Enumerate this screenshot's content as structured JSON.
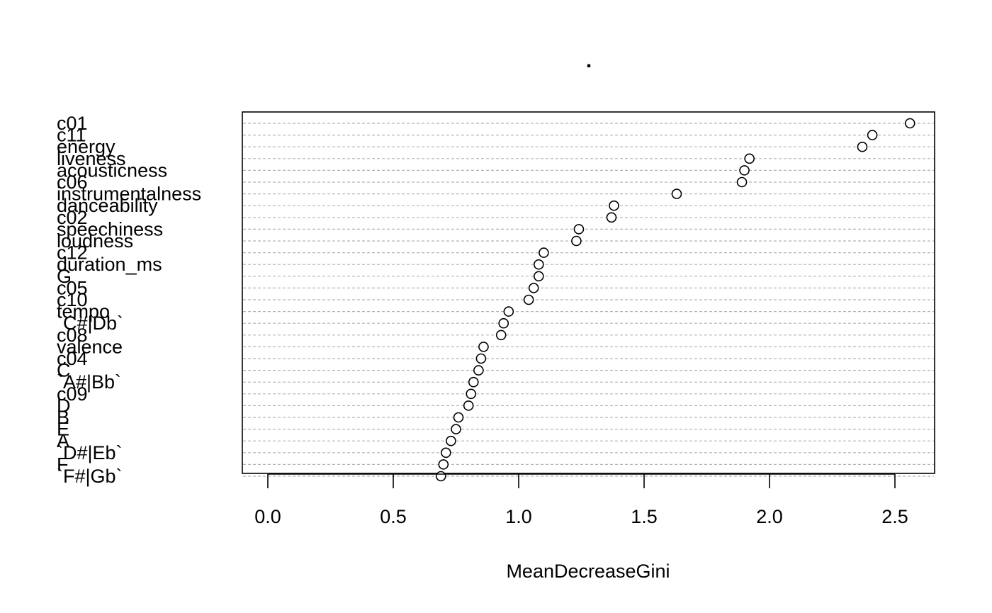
{
  "chart_data": {
    "type": "scatter",
    "variant": "dotchart",
    "title": ".",
    "xlabel": "MeanDecreaseGini",
    "ylabel": "",
    "xlim": [
      -0.1,
      2.66
    ],
    "xticks": [
      "0.0",
      "0.5",
      "1.0",
      "1.5",
      "2.0",
      "2.5"
    ],
    "grid": true,
    "categories": [
      "c01",
      "c11",
      "energy",
      "liveness",
      "acousticness",
      "c06",
      "instrumentalness",
      "danceability",
      "c02",
      "speechiness",
      "loudness",
      "c12",
      "duration_ms",
      "G",
      "c05",
      "c10",
      "tempo",
      "`C#|Db`",
      "c08",
      "valence",
      "c04",
      "C",
      "`A#|Bb`",
      "c09",
      "D",
      "B",
      "E",
      "A",
      "`D#|Eb`",
      "F",
      "`F#|Gb`"
    ],
    "values": [
      2.56,
      2.41,
      2.37,
      1.92,
      1.9,
      1.89,
      1.63,
      1.38,
      1.37,
      1.24,
      1.23,
      1.1,
      1.08,
      1.08,
      1.06,
      1.04,
      0.96,
      0.94,
      0.93,
      0.86,
      0.85,
      0.84,
      0.82,
      0.81,
      0.8,
      0.76,
      0.75,
      0.73,
      0.71,
      0.7,
      0.69
    ]
  }
}
